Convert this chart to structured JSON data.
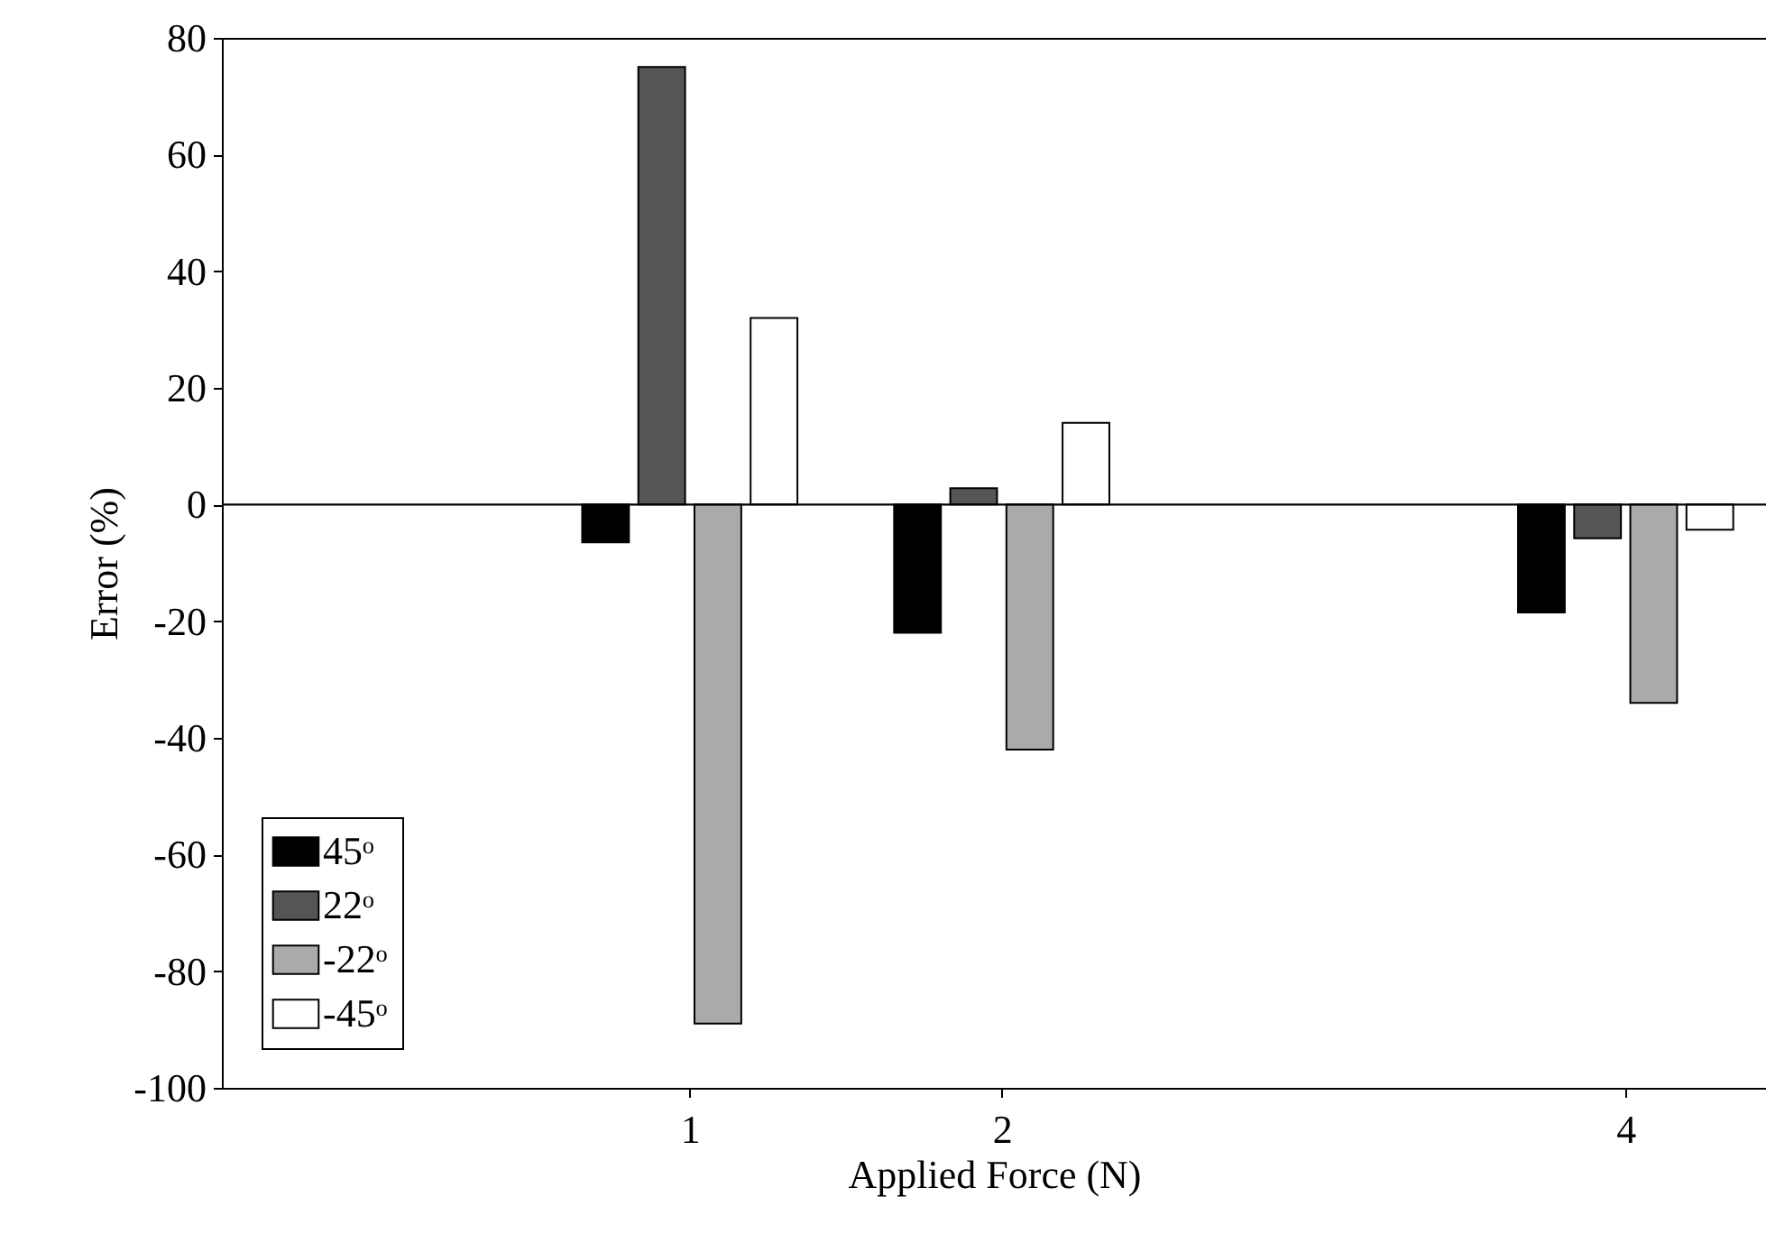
{
  "chart_data": {
    "type": "bar",
    "xlabel": "Applied Force (N)",
    "ylabel": "Error (%)",
    "x": [
      1,
      2,
      4
    ],
    "series": [
      {
        "name": "45ᵒ",
        "color": "#000000",
        "values": [
          -6.5,
          -22,
          -18.5
        ]
      },
      {
        "name": "22ᵒ",
        "color": "#555555",
        "values": [
          75,
          2.8,
          -5.8
        ]
      },
      {
        "name": "-22ᵒ",
        "color": "#aaaaaa",
        "values": [
          -89,
          -42,
          -34
        ]
      },
      {
        "name": "-45ᵒ",
        "color": "#ffffff",
        "values": [
          32,
          14,
          -4.3
        ]
      }
    ],
    "xlim": [
      -0.5,
      4.45
    ],
    "xticks": [
      1,
      2,
      4
    ],
    "ylim": [
      -100,
      80
    ],
    "yticks": [
      -100,
      -80,
      -60,
      -40,
      -20,
      0,
      20,
      40,
      60,
      80
    ],
    "ref_lines": [
      {
        "axis": "y",
        "value": 0
      }
    ],
    "grid": false,
    "legend": "bottom left"
  }
}
